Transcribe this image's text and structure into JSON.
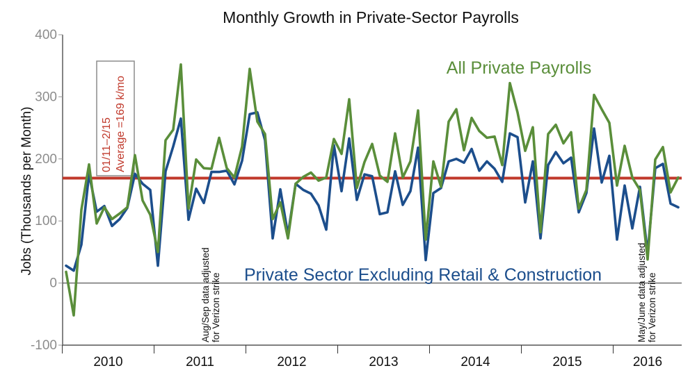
{
  "chart_data": {
    "type": "line",
    "title": "Monthly Growth in Private-Sector Payrolls",
    "ylabel": "Jobs (Thousands per Month)",
    "xlabel": "",
    "ylim": [
      -100,
      400
    ],
    "yticks": [
      -100,
      0,
      100,
      200,
      300,
      400
    ],
    "x_start": "2010-01",
    "x_end": "2016-07",
    "years": [
      "2010",
      "2011",
      "2012",
      "2013",
      "2014",
      "2015",
      "2016"
    ],
    "grid": false,
    "series": [
      {
        "name": "All Private Payrolls",
        "color": "#5a8e3a",
        "values": [
          18,
          -52,
          118,
          191,
          96,
          122,
          103,
          112,
          122,
          206,
          133,
          110,
          50,
          230,
          247,
          352,
          120,
          199,
          185,
          184,
          234,
          185,
          170,
          220,
          345,
          260,
          240,
          103,
          130,
          72,
          160,
          171,
          178,
          165,
          170,
          232,
          208,
          296,
          153,
          195,
          224,
          173,
          163,
          241,
          170,
          196,
          278,
          70,
          196,
          155,
          260,
          280,
          214,
          266,
          245,
          234,
          236,
          190,
          322,
          275,
          213,
          251,
          82,
          240,
          255,
          225,
          243,
          120,
          150,
          303,
          280,
          258,
          157,
          221,
          170,
          150,
          38,
          199,
          219,
          146,
          170
        ]
      },
      {
        "name": "Private Sector Excluding Retail & Construction",
        "color": "#1c4e8c",
        "values": [
          28,
          20,
          62,
          176,
          115,
          124,
          92,
          103,
          121,
          176,
          160,
          150,
          28,
          180,
          220,
          265,
          102,
          152,
          129,
          179,
          179,
          181,
          159,
          197,
          272,
          275,
          230,
          72,
          151,
          78,
          160,
          150,
          144,
          125,
          86,
          222,
          148,
          233,
          134,
          175,
          172,
          111,
          114,
          180,
          126,
          148,
          218,
          37,
          145,
          153,
          196,
          200,
          194,
          216,
          181,
          196,
          184,
          163,
          241,
          235,
          130,
          196,
          72,
          190,
          211,
          193,
          202,
          114,
          145,
          249,
          162,
          205,
          70,
          157,
          88,
          155,
          48,
          185,
          192,
          128,
          122
        ]
      }
    ],
    "reference_line": {
      "value": 169,
      "color": "#c0392b",
      "label_lines": [
        "01/11–2/15",
        "Average =169 k/mo"
      ]
    },
    "annotations": [
      {
        "lines": [
          "Aug/Sep data adjusted",
          "for Verizon strike"
        ],
        "date": "2011-08"
      },
      {
        "lines": [
          "May/June data adjusted",
          "for Verizon strike"
        ],
        "date": "2016-05"
      }
    ]
  }
}
